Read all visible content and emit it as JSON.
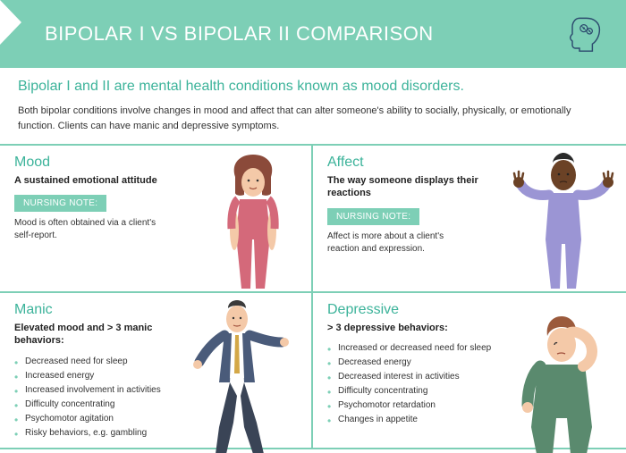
{
  "header": {
    "title": "BIPOLAR I VS BIPOLAR II COMPARISON"
  },
  "subtitle": "Bipolar I and II are mental health conditions known as mood disorders.",
  "intro": "Both bipolar conditions involve changes in mood and affect that can alter someone's ability to socially, physically, or emotionally function. Clients can have manic and depressive symptoms.",
  "colors": {
    "accent": "#7dcfb6",
    "title_text": "#3cb39a",
    "body_text": "#333333"
  },
  "cells": {
    "mood": {
      "title": "Mood",
      "subtitle": "A sustained emotional attitude",
      "nursing_label": "NURSING NOTE:",
      "note": "Mood is often obtained via a client's self-report."
    },
    "affect": {
      "title": "Affect",
      "subtitle": "The way someone displays their reactions",
      "nursing_label": "NURSING NOTE:",
      "note": "Affect is more about a client's reaction and expression."
    },
    "manic": {
      "title": "Manic",
      "subtitle": "Elevated mood and  > 3 manic behaviors:",
      "bullets": [
        "Decreased need for sleep",
        "Increased energy",
        "Increased involvement in activities",
        "Difficulty concentrating",
        "Psychomotor agitation",
        "Risky behaviors, e.g. gambling"
      ]
    },
    "depressive": {
      "title": "Depressive",
      "subtitle": "> 3 depressive behaviors:",
      "bullets": [
        "Increased or decreased need for sleep",
        "Decreased energy",
        "Decreased interest in activities",
        "Difficulty concentrating",
        "Psychomotor retardation",
        "Changes in appetite"
      ]
    }
  }
}
